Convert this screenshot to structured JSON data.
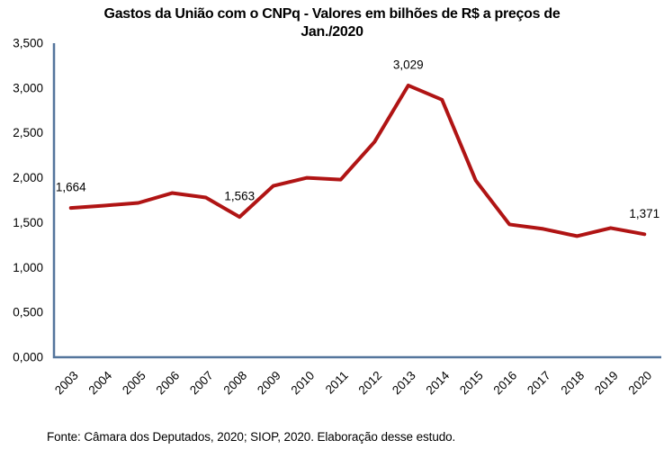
{
  "title": {
    "line1": "Gastos da União com o CNPq - Valores em bilhões de R$ a preços de",
    "line2": "Jan./2020"
  },
  "footer": "Fonte: Câmara dos Deputados, 2020; SIOP, 2020. Elaboração desse estudo.",
  "colors": {
    "line": "#b01414",
    "axis": "#54759c",
    "text": "#000000"
  },
  "chart_data": {
    "type": "line",
    "title": "Gastos da União com o CNPq - Valores em bilhões de R$ a preços de Jan./2020",
    "categories": [
      "2003",
      "2004",
      "2005",
      "2006",
      "2007",
      "2008",
      "2009",
      "2010",
      "2011",
      "2012",
      "2013",
      "2014",
      "2015",
      "2016",
      "2017",
      "2018",
      "2019",
      "2020"
    ],
    "values": [
      1.664,
      1.69,
      1.72,
      1.83,
      1.78,
      1.563,
      1.91,
      2.0,
      1.98,
      2.4,
      3.029,
      2.87,
      1.97,
      1.48,
      1.43,
      1.35,
      1.44,
      1.371
    ],
    "unit": "bilhões de R$ a preços de Jan./2020",
    "ylim": [
      0,
      3.5
    ],
    "ytick_labels": [
      "0,000",
      "0,500",
      "1,000",
      "1,500",
      "2,000",
      "2,500",
      "3,000",
      "3,500"
    ],
    "point_labels": [
      {
        "index": 0,
        "text": "1,664"
      },
      {
        "index": 5,
        "text": "1,563"
      },
      {
        "index": 10,
        "text": "3,029"
      },
      {
        "index": 17,
        "text": "1,371"
      }
    ],
    "grid": false,
    "legend": "none",
    "xlabel": "",
    "ylabel": ""
  }
}
